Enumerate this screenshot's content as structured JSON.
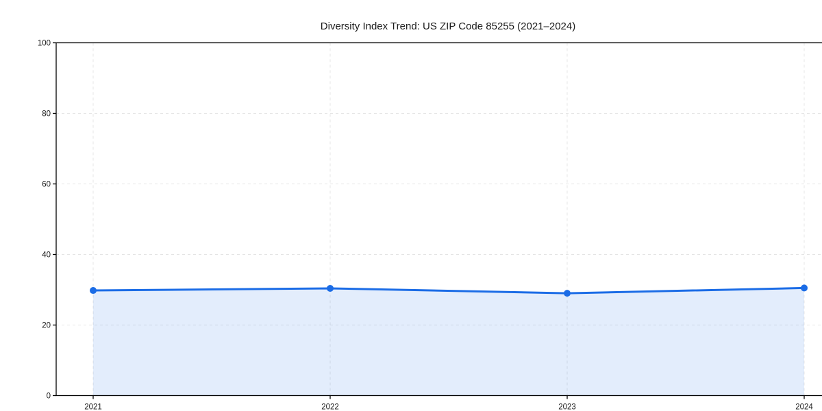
{
  "chart_data": {
    "type": "line",
    "title": "Diversity Index Trend: US ZIP Code 85255 (2021–2024)",
    "xlabel": "",
    "ylabel": "",
    "x": [
      2021,
      2022,
      2023,
      2024
    ],
    "xtick_labels": [
      "2021",
      "2022",
      "2023",
      "2024"
    ],
    "series": [
      {
        "name": "Diversity Index",
        "values": [
          29.8,
          30.4,
          29.0,
          30.5
        ]
      }
    ],
    "ylim": [
      0,
      100
    ],
    "yticks": [
      0,
      20,
      40,
      60,
      80,
      100
    ],
    "ytick_labels": [
      "0",
      "20",
      "40",
      "60",
      "80",
      "100"
    ],
    "grid": true,
    "grid_style": "dashed",
    "legend_position": "none",
    "marker": "circle",
    "fill_area": true,
    "colors": {
      "line": "#1b6ce6",
      "marker": "#1b6ce6",
      "area_fill": "rgba(27,108,230,0.12)",
      "grid": "#e4e4e4",
      "axis": "#000000",
      "background": "#ffffff",
      "text": "#1a1a1a"
    }
  }
}
